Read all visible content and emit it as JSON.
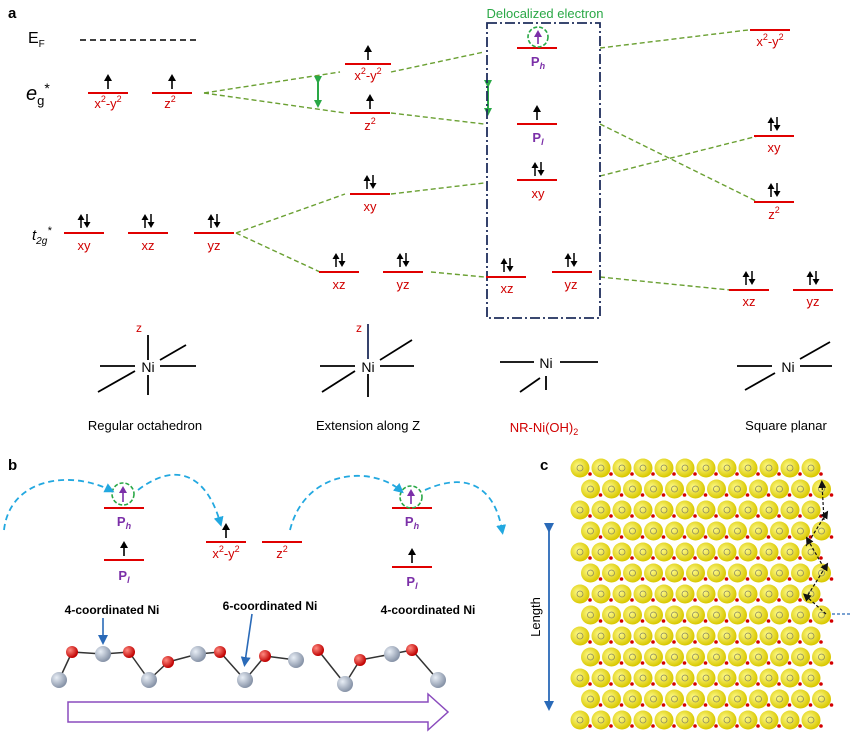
{
  "panel_labels": {
    "a": "a",
    "b": "b",
    "c": "c"
  },
  "colors": {
    "level": "#e00000",
    "orbital_text": "#d00000",
    "dashed": "#6aa032",
    "green": "#2aa846",
    "purple": "#7b2fa8",
    "navy": "#1f2e5c",
    "cyan": "#22a8e0",
    "blue_arrow": "#2a6ab8",
    "red_atom": "#d40000",
    "grey_atom": "#aeb8c8",
    "yellow": "#f4ea10",
    "outline_purple": "#8a4bbd"
  },
  "panel_a": {
    "ef_label": "E",
    "ef_sub": "F",
    "eg_label": "e",
    "eg_sub": "g",
    "eg_star": "*",
    "t2g_label": "t",
    "t2g_sub": "2g",
    "t2g_star": "*",
    "delocalized_label": "Delocalized electron",
    "col1": {
      "x2y2": "x",
      "z2": "z",
      "xy": "xy",
      "xz": "xz",
      "yz": "yz"
    },
    "col2": {
      "x2y2": "x",
      "z2": "z",
      "xy": "xy",
      "xz": "xz",
      "yz": "yz"
    },
    "col3": {
      "ph": "P",
      "ph_sub": "h",
      "pl": "P",
      "pl_sub": "l",
      "xy": "xy",
      "xz": "xz",
      "yz": "yz"
    },
    "col4": {
      "x2y2": "x",
      "xy": "xy",
      "z2": "z",
      "xz": "xz",
      "yz": "yz"
    },
    "geometry_labels": {
      "regular": "Regular octahedron",
      "extension": "Extension along Z",
      "nr_prefix": "NR-Ni(OH)",
      "nr_sub": "2",
      "square": "Square planar"
    },
    "ni": "Ni",
    "z_axis": "z"
  },
  "panel_b": {
    "ph": "P",
    "ph_sub": "h",
    "pl": "P",
    "pl_sub": "l",
    "x2y2": "x",
    "z2": "z",
    "four_coord_left": "4-coordinated Ni",
    "six_coord": "6-coordinated Ni",
    "four_coord_right": "4-coordinated Ni"
  },
  "panel_c": {
    "length_label": "Length"
  },
  "superscripts": {
    "two": "2",
    "minus_y": "-y"
  }
}
